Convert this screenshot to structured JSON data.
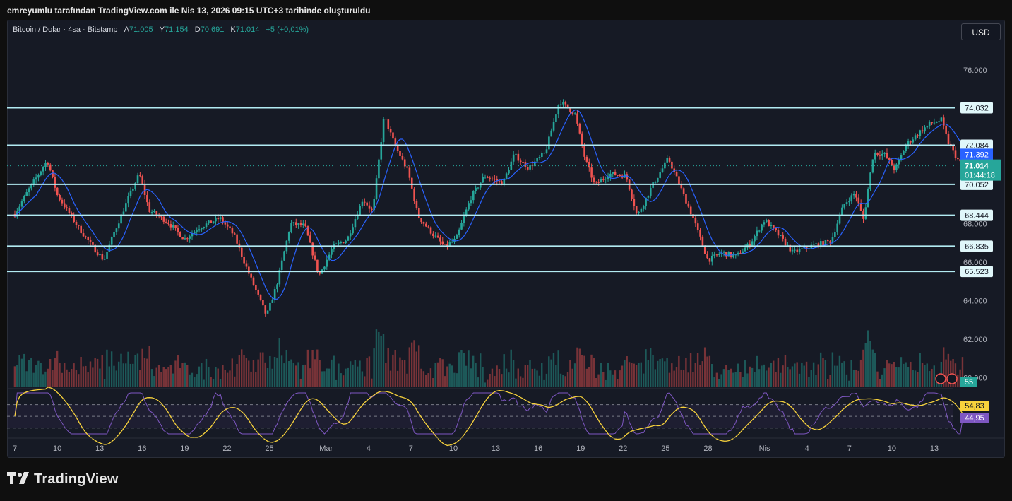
{
  "header": {
    "attribution": "emreyumlu tarafından TradingView.com ile Nis 13, 2026 09:15 UTC+3 tarihinde oluşturuldu"
  },
  "legend": {
    "symbol": "Bitcoin / Dolar · 4sa · Bitstamp",
    "open_label": "A",
    "open": "71.005",
    "high_label": "Y",
    "high": "71.154",
    "low_label": "D",
    "low": "70.691",
    "close_label": "K",
    "close": "71.014",
    "change": "+5 (+0,01%)"
  },
  "currency_button": "USD",
  "brand": {
    "logo_text": "TradingView",
    "logo_mark": "17"
  },
  "colors": {
    "up": "#26a69a",
    "down": "#ef5350",
    "ma": "#2962ff",
    "level": "#b2ebf2",
    "rsi": "#7e57c2",
    "rsi_ma": "#f7d23c",
    "background": "#161a25"
  },
  "chart_data": {
    "type": "candlestick",
    "price_axis": {
      "ticks": [
        "76.000",
        "74.000",
        "72.000",
        "70.000",
        "68.000",
        "66.000",
        "64.000",
        "62.000",
        "60.000"
      ],
      "tick_values": [
        76000,
        74000,
        72000,
        70000,
        68000,
        66000,
        64000,
        62000,
        60000
      ],
      "ylim": [
        59500,
        77800
      ]
    },
    "horizontal_levels": [
      {
        "label": "74.032",
        "value": 74032
      },
      {
        "label": "72.084",
        "value": 72084
      },
      {
        "label": "70.052",
        "value": 70052
      },
      {
        "label": "68.444",
        "value": 68444
      },
      {
        "label": "66.835",
        "value": 66835
      },
      {
        "label": "65.523",
        "value": 65523
      }
    ],
    "ma_last": {
      "label": "71.392",
      "value": 71392
    },
    "last_price": {
      "label": "71.014",
      "value": 71014,
      "countdown": "01:44:18"
    },
    "volume_badge": "55",
    "x_ticks": [
      "7",
      "10",
      "13",
      "16",
      "19",
      "22",
      "25",
      "Mar",
      "4",
      "7",
      "10",
      "13",
      "16",
      "19",
      "22",
      "25",
      "28",
      "Nis",
      "4",
      "7",
      "10",
      "13"
    ],
    "x_tick_days": [
      0,
      3,
      6,
      9,
      12,
      15,
      18,
      22,
      25,
      28,
      31,
      34,
      37,
      40,
      43,
      46,
      49,
      53,
      56,
      59,
      62,
      65
    ],
    "price_anchors": [
      {
        "day": 0,
        "price": 68500
      },
      {
        "day": 1,
        "price": 69800
      },
      {
        "day": 2.3,
        "price": 71300
      },
      {
        "day": 3,
        "price": 69500
      },
      {
        "day": 4.5,
        "price": 67800
      },
      {
        "day": 5.5,
        "price": 66800
      },
      {
        "day": 6.3,
        "price": 66100
      },
      {
        "day": 7,
        "price": 67500
      },
      {
        "day": 8,
        "price": 69300
      },
      {
        "day": 8.8,
        "price": 70600
      },
      {
        "day": 9.5,
        "price": 68700
      },
      {
        "day": 10.8,
        "price": 68100
      },
      {
        "day": 12,
        "price": 67200
      },
      {
        "day": 13,
        "price": 67800
      },
      {
        "day": 14.5,
        "price": 68300
      },
      {
        "day": 15.5,
        "price": 67400
      },
      {
        "day": 16.6,
        "price": 65300
      },
      {
        "day": 17.8,
        "price": 63200
      },
      {
        "day": 18.5,
        "price": 64800
      },
      {
        "day": 19.5,
        "price": 68000
      },
      {
        "day": 20.5,
        "price": 67900
      },
      {
        "day": 21.5,
        "price": 65300
      },
      {
        "day": 22.5,
        "price": 66800
      },
      {
        "day": 23.5,
        "price": 67200
      },
      {
        "day": 24.6,
        "price": 69300
      },
      {
        "day": 25.3,
        "price": 68600
      },
      {
        "day": 26.1,
        "price": 73600
      },
      {
        "day": 26.8,
        "price": 72200
      },
      {
        "day": 27.8,
        "price": 70700
      },
      {
        "day": 28.5,
        "price": 68400
      },
      {
        "day": 29.5,
        "price": 67500
      },
      {
        "day": 30.4,
        "price": 66800
      },
      {
        "day": 31.2,
        "price": 67200
      },
      {
        "day": 32.2,
        "price": 69300
      },
      {
        "day": 33.2,
        "price": 70500
      },
      {
        "day": 34.5,
        "price": 70100
      },
      {
        "day": 35.3,
        "price": 71600
      },
      {
        "day": 36.3,
        "price": 70900
      },
      {
        "day": 37.5,
        "price": 71700
      },
      {
        "day": 38.5,
        "price": 74400
      },
      {
        "day": 39.6,
        "price": 73700
      },
      {
        "day": 40.3,
        "price": 71400
      },
      {
        "day": 41,
        "price": 70000
      },
      {
        "day": 42,
        "price": 70600
      },
      {
        "day": 43.2,
        "price": 70500
      },
      {
        "day": 44,
        "price": 68400
      },
      {
        "day": 45,
        "price": 69900
      },
      {
        "day": 46.2,
        "price": 71400
      },
      {
        "day": 47,
        "price": 70000
      },
      {
        "day": 48,
        "price": 68200
      },
      {
        "day": 49,
        "price": 66100
      },
      {
        "day": 50,
        "price": 66500
      },
      {
        "day": 51,
        "price": 66300
      },
      {
        "day": 52,
        "price": 67000
      },
      {
        "day": 53,
        "price": 68200
      },
      {
        "day": 54,
        "price": 67400
      },
      {
        "day": 55,
        "price": 66500
      },
      {
        "day": 56.5,
        "price": 66900
      },
      {
        "day": 57.7,
        "price": 67100
      },
      {
        "day": 58.6,
        "price": 69000
      },
      {
        "day": 59.4,
        "price": 69600
      },
      {
        "day": 60,
        "price": 68200
      },
      {
        "day": 60.7,
        "price": 71700
      },
      {
        "day": 61.5,
        "price": 71600
      },
      {
        "day": 62.2,
        "price": 70800
      },
      {
        "day": 63,
        "price": 72100
      },
      {
        "day": 64,
        "price": 72800
      },
      {
        "day": 64.7,
        "price": 73200
      },
      {
        "day": 65.5,
        "price": 73400
      },
      {
        "day": 66,
        "price": 72200
      },
      {
        "day": 66.6,
        "price": 71400
      },
      {
        "day": 67,
        "price": 71014
      }
    ],
    "rsi": {
      "levels": [
        70,
        50,
        30
      ],
      "value_label": "44,95",
      "value": 44.95,
      "ma_label": "54,83",
      "ma_value": 54.83
    }
  }
}
